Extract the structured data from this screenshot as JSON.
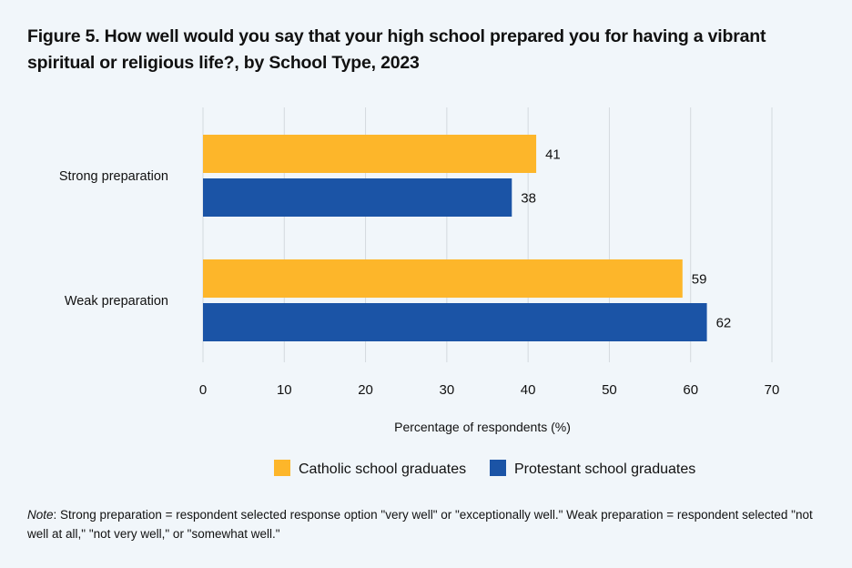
{
  "chart_data": {
    "type": "bar",
    "orientation": "horizontal",
    "title": "Figure 5. How well would you say that your high school prepared you for having a vibrant spiritual or religious life?, by School Type, 2023",
    "categories": [
      "Strong preparation",
      "Weak preparation"
    ],
    "series": [
      {
        "name": "Catholic school graduates",
        "color": "#fdb62a",
        "values": [
          41,
          59
        ]
      },
      {
        "name": "Protestant school graduates",
        "color": "#1b54a6",
        "values": [
          38,
          62
        ]
      }
    ],
    "xlabel": "Percentage of respondents (%)",
    "ylabel": "",
    "xlim": [
      0,
      70
    ],
    "xticks": [
      0,
      10,
      20,
      30,
      40,
      50,
      60,
      70
    ],
    "grid": "vertical",
    "legend": "bottom"
  },
  "note": {
    "label": "Note",
    "text": ": Strong preparation = respondent selected response option \"very well\" or \"exceptionally well.\" Weak preparation = respondent selected \"not well at all,\" \"not very well,\" or \"somewhat well.\""
  },
  "colors": {
    "background": "#f1f6fa",
    "grid": "#d4d9de"
  }
}
